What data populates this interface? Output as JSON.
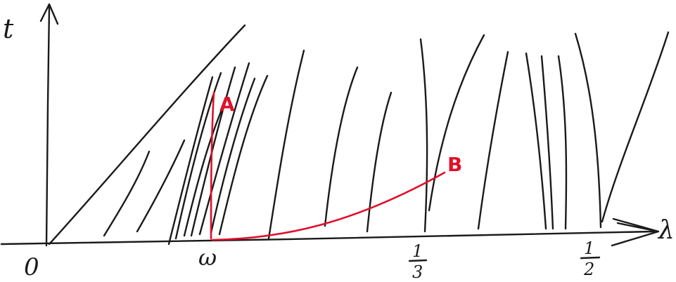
{
  "axes": {
    "vertical_label": "t",
    "horizontal_label": "λ",
    "origin_label": "0"
  },
  "ticks": {
    "omega": "ω",
    "third_num": "1",
    "third_den": "3",
    "half_num": "1",
    "half_den": "2"
  },
  "points": {
    "a": "A",
    "b": "B"
  },
  "colors": {
    "ink": "#1a1a1a",
    "accent": "#e0102a"
  }
}
